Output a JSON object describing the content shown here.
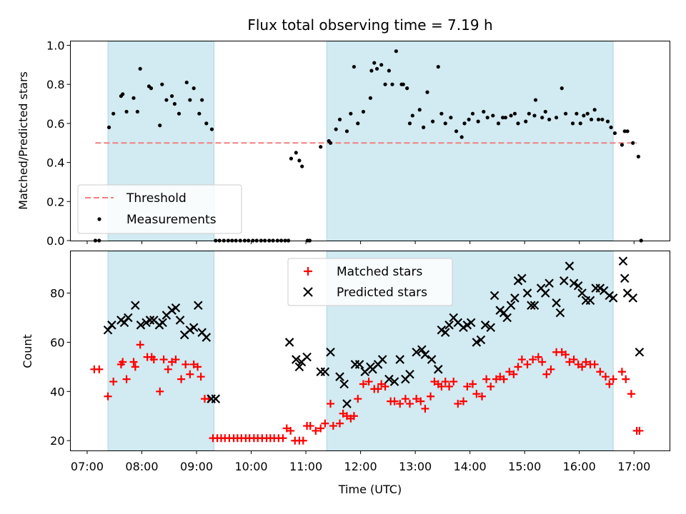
{
  "chart_data": {
    "title": "Flux total observing time = 7.19 h",
    "xlabel": "Time (UTC)",
    "x_ticks": [
      "07:00",
      "08:00",
      "09:00",
      "10:00",
      "11:00",
      "12:00",
      "13:00",
      "14:00",
      "15:00",
      "16:00",
      "17:00"
    ],
    "x_range_hours": [
      6.7,
      17.65
    ],
    "shaded_intervals": [
      [
        7.38,
        9.32
      ],
      [
        11.38,
        16.62
      ]
    ],
    "shade_color": "#add8e6",
    "panels": [
      {
        "type": "scatter",
        "ylabel": "Matched/Predicted stars",
        "ylim": [
          0,
          1.02
        ],
        "y_ticks": [
          "0.0",
          "0.2",
          "0.4",
          "0.6",
          "0.8",
          "1.0"
        ],
        "threshold": {
          "name": "Threshold",
          "value": 0.5,
          "x_range": [
            7.15,
            17.05
          ],
          "color": "#f08080"
        },
        "legend": {
          "placement": "lower-left",
          "entries": [
            "Threshold",
            "Measurements"
          ]
        },
        "series": [
          {
            "name": "Measurements",
            "color": "#000000",
            "marker": "dot",
            "x": [
              7.15,
              7.22,
              7.4,
              7.48,
              7.62,
              7.65,
              7.72,
              7.85,
              7.92,
              7.97,
              8.13,
              8.17,
              8.33,
              8.37,
              8.45,
              8.55,
              8.6,
              8.68,
              8.82,
              8.88,
              8.95,
              9.05,
              9.1,
              9.18,
              9.28,
              9.35,
              9.42,
              9.5,
              9.58,
              9.65,
              9.72,
              9.8,
              9.88,
              9.95,
              10.03,
              10.1,
              10.18,
              10.25,
              10.33,
              10.4,
              10.48,
              10.55,
              10.62,
              10.68,
              10.73,
              10.82,
              10.88,
              10.93,
              11.03,
              11.07,
              11.27,
              11.42,
              11.45,
              11.55,
              11.62,
              11.75,
              11.82,
              11.88,
              11.95,
              12.05,
              12.18,
              12.2,
              12.25,
              12.3,
              12.38,
              12.45,
              12.52,
              12.58,
              12.65,
              12.75,
              12.78,
              12.85,
              12.9,
              12.95,
              13.08,
              13.15,
              13.22,
              13.32,
              13.42,
              13.48,
              13.55,
              13.65,
              13.75,
              13.85,
              13.9,
              13.98,
              14.05,
              14.15,
              14.25,
              14.32,
              14.42,
              14.52,
              14.6,
              14.65,
              14.75,
              14.82,
              14.88,
              15.02,
              15.08,
              15.18,
              15.2,
              15.32,
              15.38,
              15.45,
              15.58,
              15.68,
              15.75,
              15.88,
              15.95,
              16.02,
              16.08,
              16.15,
              16.22,
              16.28,
              16.35,
              16.42,
              16.52,
              16.58,
              16.65,
              16.78,
              16.83,
              16.88,
              16.98,
              17.08,
              17.13
            ],
            "y": [
              0.0,
              0.0,
              0.58,
              0.65,
              0.74,
              0.75,
              0.66,
              0.73,
              0.66,
              0.88,
              0.79,
              0.78,
              0.59,
              0.8,
              0.72,
              0.74,
              0.7,
              0.65,
              0.81,
              0.72,
              0.78,
              0.65,
              0.72,
              0.6,
              0.57,
              0.0,
              0.0,
              0.0,
              0.0,
              0.0,
              0.0,
              0.0,
              0.0,
              0.0,
              0.0,
              0.0,
              0.0,
              0.0,
              0.0,
              0.0,
              0.0,
              0.0,
              0.0,
              0.0,
              0.42,
              0.45,
              0.41,
              0.38,
              0.0,
              0.0,
              0.48,
              0.51,
              0.5,
              0.57,
              0.62,
              0.56,
              0.65,
              0.89,
              0.6,
              0.66,
              0.73,
              0.87,
              0.91,
              0.88,
              0.9,
              0.8,
              0.87,
              0.8,
              0.97,
              0.8,
              0.8,
              0.78,
              0.6,
              0.64,
              0.67,
              0.58,
              0.76,
              0.61,
              0.89,
              0.65,
              0.6,
              0.63,
              0.56,
              0.53,
              0.6,
              0.62,
              0.65,
              0.61,
              0.66,
              0.63,
              0.64,
              0.6,
              0.63,
              0.63,
              0.64,
              0.65,
              0.6,
              0.61,
              0.65,
              0.64,
              0.72,
              0.63,
              0.66,
              0.62,
              0.63,
              0.78,
              0.65,
              0.6,
              0.65,
              0.6,
              0.64,
              0.65,
              0.62,
              0.67,
              0.62,
              0.62,
              0.61,
              0.58,
              0.55,
              0.49,
              0.56,
              0.56,
              0.5,
              0.43,
              0.0
            ]
          }
        ]
      },
      {
        "type": "scatter",
        "ylabel": "Count",
        "ylim": [
          16,
          97
        ],
        "y_ticks": [
          "20",
          "40",
          "60",
          "80"
        ],
        "legend": {
          "placement": "upper-center",
          "entries": [
            "Matched stars",
            "Predicted stars"
          ]
        },
        "series": [
          {
            "name": "Matched stars",
            "color": "#ff0000",
            "marker": "plus",
            "x": [
              7.13,
              7.22,
              7.38,
              7.48,
              7.62,
              7.65,
              7.72,
              7.85,
              7.88,
              7.97,
              8.1,
              8.18,
              8.22,
              8.33,
              8.4,
              8.48,
              8.55,
              8.62,
              8.72,
              8.8,
              8.88,
              8.95,
              9.02,
              9.08,
              9.15,
              9.22,
              9.3,
              9.38,
              9.45,
              9.52,
              9.6,
              9.68,
              9.75,
              9.82,
              9.9,
              9.97,
              10.05,
              10.12,
              10.2,
              10.28,
              10.35,
              10.42,
              10.5,
              10.58,
              10.65,
              10.72,
              10.8,
              10.88,
              10.95,
              11.02,
              11.08,
              11.18,
              11.27,
              11.35,
              11.45,
              11.5,
              11.62,
              11.68,
              11.75,
              11.82,
              11.88,
              11.95,
              12.05,
              12.15,
              12.25,
              12.32,
              12.38,
              12.45,
              12.55,
              12.62,
              12.72,
              12.82,
              12.9,
              13.02,
              13.1,
              13.18,
              13.28,
              13.35,
              13.42,
              13.48,
              13.55,
              13.62,
              13.7,
              13.78,
              13.88,
              13.95,
              14.05,
              14.12,
              14.22,
              14.3,
              14.38,
              14.48,
              14.55,
              14.62,
              14.72,
              14.8,
              14.88,
              14.95,
              15.05,
              15.15,
              15.25,
              15.32,
              15.4,
              15.48,
              15.58,
              15.68,
              15.75,
              15.82,
              15.9,
              15.98,
              16.05,
              16.12,
              16.2,
              16.28,
              16.38,
              16.48,
              16.55,
              16.62,
              16.78,
              16.85,
              16.95,
              17.05,
              17.1
            ],
            "y": [
              49,
              49,
              38,
              44,
              51,
              52,
              45,
              52,
              50,
              59,
              54,
              54,
              53,
              40,
              53,
              49,
              52,
              53,
              45,
              51,
              47,
              51,
              50,
              46,
              37,
              37,
              21,
              21,
              21,
              21,
              21,
              21,
              21,
              21,
              21,
              21,
              21,
              21,
              21,
              21,
              21,
              21,
              21,
              21,
              25,
              24,
              20,
              20,
              20,
              26,
              26,
              24,
              25,
              27,
              35,
              26,
              27,
              31,
              30,
              29,
              30,
              37,
              43,
              44,
              41,
              41,
              43,
              42,
              36,
              36,
              35,
              37,
              35,
              37,
              36,
              33,
              38,
              44,
              43,
              42,
              44,
              42,
              44,
              35,
              36,
              42,
              43,
              39,
              38,
              45,
              42,
              45,
              46,
              45,
              48,
              47,
              50,
              53,
              51,
              53,
              54,
              52,
              47,
              49,
              56,
              56,
              55,
              52,
              53,
              51,
              50,
              52,
              51,
              51,
              48,
              46,
              43,
              45,
              48,
              45,
              39,
              24,
              24
            ]
          },
          {
            "name": "Predicted stars",
            "color": "#000000",
            "marker": "x",
            "x": [
              7.38,
              7.45,
              7.62,
              7.68,
              7.75,
              7.88,
              7.98,
              8.08,
              8.15,
              8.22,
              8.32,
              8.38,
              8.45,
              8.55,
              8.62,
              8.7,
              8.78,
              8.88,
              8.95,
              9.03,
              9.1,
              9.18,
              9.27,
              9.35,
              10.7,
              10.82,
              10.88,
              10.92,
              11.02,
              11.27,
              11.35,
              11.45,
              11.62,
              11.7,
              11.75,
              11.9,
              11.98,
              12.08,
              12.18,
              12.22,
              12.32,
              12.4,
              12.52,
              12.62,
              12.72,
              12.82,
              12.9,
              13.02,
              13.12,
              13.18,
              13.3,
              13.42,
              13.48,
              13.55,
              13.62,
              13.7,
              13.78,
              13.88,
              13.95,
              14.02,
              14.12,
              14.2,
              14.28,
              14.38,
              14.45,
              14.55,
              14.62,
              14.68,
              14.75,
              14.82,
              14.88,
              14.95,
              15.05,
              15.12,
              15.18,
              15.3,
              15.38,
              15.45,
              15.58,
              15.65,
              15.72,
              15.82,
              15.9,
              15.98,
              16.05,
              16.12,
              16.2,
              16.3,
              16.38,
              16.45,
              16.55,
              16.62,
              16.8,
              16.83,
              16.88,
              16.98,
              17.1
            ],
            "y": [
              65,
              67,
              69,
              68,
              70,
              75,
              67,
              68,
              69,
              69,
              67,
              68,
              71,
              73,
              74,
              69,
              63,
              65,
              66,
              75,
              64,
              62,
              37,
              37,
              60,
              53,
              50,
              52,
              54,
              48,
              48,
              56,
              46,
              43,
              35,
              51,
              51,
              48,
              50,
              49,
              51,
              53,
              45,
              44,
              53,
              45,
              47,
              56,
              57,
              55,
              53,
              49,
              65,
              64,
              67,
              70,
              68,
              66,
              67,
              68,
              60,
              61,
              67,
              66,
              79,
              73,
              72,
              70,
              75,
              78,
              85,
              86,
              80,
              75,
              75,
              82,
              80,
              84,
              76,
              72,
              85,
              91,
              84,
              83,
              80,
              77,
              77,
              82,
              82,
              81,
              79,
              78,
              93,
              86,
              80,
              78,
              56
            ]
          }
        ]
      }
    ]
  }
}
